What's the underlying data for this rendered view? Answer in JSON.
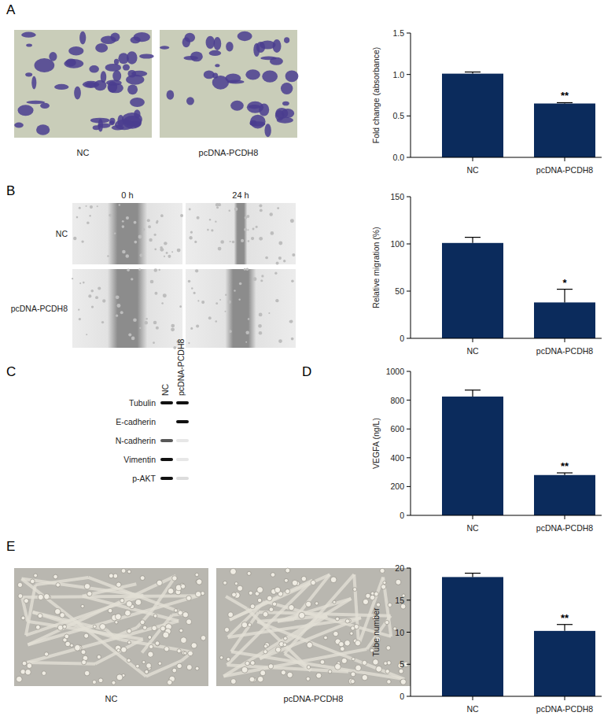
{
  "chart_data": [
    {
      "type": "bar",
      "y_label": "Fold change (absorbance)",
      "categories": [
        "NC",
        "pcDNA-PCDH8"
      ],
      "values": [
        1.01,
        0.65
      ],
      "errors": [
        0.02,
        0.01
      ],
      "significance": [
        null,
        "**"
      ],
      "color": "#0b2b5c",
      "ylim": [
        0,
        1.5
      ],
      "yticks": [
        {
          "value": 0,
          "label": "0.0"
        },
        {
          "value": 0.5,
          "label": "0.5"
        },
        {
          "value": 1,
          "label": "1.0"
        },
        {
          "value": 1.5,
          "label": "1.5"
        }
      ],
      "grid": false
    },
    {
      "type": "bar",
      "y_label": "Relative migration (%)",
      "categories": [
        "NC",
        "pcDNA-PCDH8"
      ],
      "values": [
        101,
        38
      ],
      "errors": [
        6,
        14
      ],
      "significance": [
        null,
        "*"
      ],
      "color": "#0b2b5c",
      "ylim": [
        0,
        150
      ],
      "yticks": [
        0,
        50,
        100,
        150
      ],
      "grid": false
    },
    {
      "type": "bar",
      "y_label": "VEGFA (ng/L)",
      "categories": [
        "NC",
        "pcDNA-PCDH8"
      ],
      "values": [
        825,
        280
      ],
      "errors": [
        45,
        15
      ],
      "significance": [
        null,
        "**"
      ],
      "color": "#0b2b5c",
      "ylim": [
        0,
        1000
      ],
      "yticks": [
        0,
        200,
        400,
        600,
        800,
        1000
      ],
      "grid": false
    },
    {
      "type": "bar",
      "y_label": "Tube number",
      "categories": [
        "NC",
        "pcDNA-PCDH8"
      ],
      "values": [
        18.6,
        10.2
      ],
      "errors": [
        0.6,
        1.0
      ],
      "significance": [
        null,
        "**"
      ],
      "color": "#0b2b5c",
      "ylim": [
        0,
        20
      ],
      "yticks": [
        0,
        5,
        10,
        15,
        20
      ],
      "grid": false
    }
  ],
  "figure": {
    "panel_labels": [
      "A",
      "B",
      "C",
      "D",
      "E"
    ],
    "panel_a_images": [
      "NC",
      "pcDNA-PCDH8"
    ],
    "panel_b_images": {
      "columns": [
        "0 h",
        "24 h"
      ],
      "rows": [
        "NC",
        "pcDNA-PCDH8"
      ]
    },
    "panel_c_blot": {
      "lanes": [
        "NC",
        "pcDNA-PCDH8"
      ],
      "rows": [
        {
          "label": "Tubulin",
          "intensity": [
            1,
            1
          ]
        },
        {
          "label": "E-cadherin",
          "intensity": [
            0,
            1
          ]
        },
        {
          "label": "N-cadherin",
          "intensity": [
            0.7,
            0.1
          ]
        },
        {
          "label": "Vimentin",
          "intensity": [
            1,
            0.1
          ]
        },
        {
          "label": "p-AKT",
          "intensity": [
            1,
            0.15
          ]
        }
      ]
    },
    "panel_e_images": [
      "NC",
      "pcDNA-PCDH8"
    ]
  }
}
